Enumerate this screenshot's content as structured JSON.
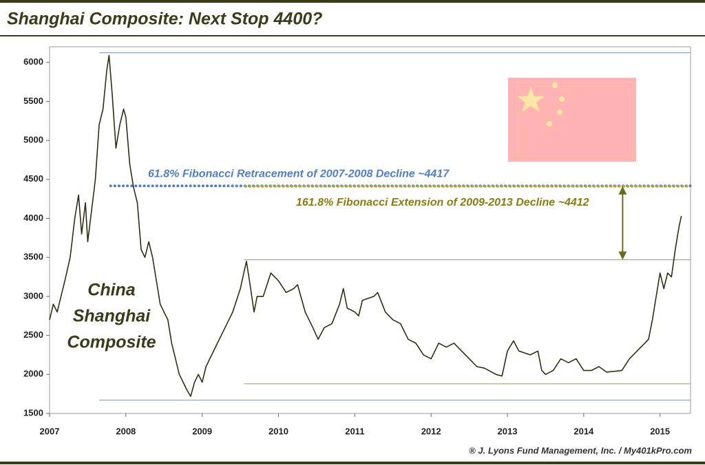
{
  "chart_data": {
    "type": "line",
    "title": "Shanghai Composite: Next Stop 4400?",
    "credit": "® J. Lyons Fund Management, Inc. / My401kPro.com",
    "xlim": [
      2007,
      2015.4
    ],
    "ylim": [
      1500,
      6200
    ],
    "xticks": [
      2007,
      2008,
      2009,
      2010,
      2011,
      2012,
      2013,
      2014,
      2015
    ],
    "yticks": [
      1500,
      2000,
      2500,
      3000,
      3500,
      4000,
      4500,
      5000,
      5500,
      6000
    ],
    "x": [
      2007.0,
      2007.05,
      2007.1,
      2007.15,
      2007.2,
      2007.27,
      2007.33,
      2007.38,
      2007.42,
      2007.47,
      2007.5,
      2007.55,
      2007.6,
      2007.65,
      2007.7,
      2007.75,
      2007.78,
      2007.82,
      2007.87,
      2007.92,
      2007.97,
      2008.0,
      2008.05,
      2008.1,
      2008.15,
      2008.2,
      2008.25,
      2008.3,
      2008.35,
      2008.4,
      2008.45,
      2008.5,
      2008.55,
      2008.6,
      2008.65,
      2008.7,
      2008.75,
      2008.8,
      2008.85,
      2008.9,
      2008.95,
      2009.0,
      2009.05,
      2009.1,
      2009.2,
      2009.3,
      2009.4,
      2009.5,
      2009.58,
      2009.62,
      2009.68,
      2009.72,
      2009.8,
      2009.9,
      2010.0,
      2010.1,
      2010.2,
      2010.25,
      2010.35,
      2010.45,
      2010.52,
      2010.6,
      2010.7,
      2010.8,
      2010.85,
      2010.9,
      2011.0,
      2011.05,
      2011.1,
      2011.25,
      2011.3,
      2011.4,
      2011.5,
      2011.6,
      2011.7,
      2011.8,
      2011.9,
      2012.0,
      2012.1,
      2012.2,
      2012.3,
      2012.4,
      2012.5,
      2012.6,
      2012.7,
      2012.85,
      2012.93,
      2013.0,
      2013.08,
      2013.15,
      2013.3,
      2013.4,
      2013.45,
      2013.5,
      2013.6,
      2013.7,
      2013.8,
      2013.9,
      2014.0,
      2014.1,
      2014.2,
      2014.3,
      2014.4,
      2014.5,
      2014.6,
      2014.7,
      2014.8,
      2014.85,
      2014.9,
      2014.95,
      2015.0,
      2015.05,
      2015.1,
      2015.15,
      2015.2,
      2015.25,
      2015.28
    ],
    "series": [
      {
        "color": "#2e2e12",
        "values": [
          2700,
          2900,
          2800,
          3000,
          3200,
          3500,
          4000,
          4300,
          3800,
          4200,
          3700,
          4100,
          4500,
          5200,
          5400,
          5900,
          6090,
          5600,
          4900,
          5200,
          5400,
          5300,
          4700,
          4400,
          4200,
          3600,
          3500,
          3700,
          3500,
          3200,
          2900,
          2800,
          2700,
          2400,
          2200,
          2000,
          1900,
          1800,
          1720,
          1900,
          2000,
          1900,
          2100,
          2200,
          2400,
          2600,
          2800,
          3100,
          3450,
          3200,
          2800,
          3000,
          3000,
          3300,
          3200,
          3050,
          3100,
          3150,
          2800,
          2600,
          2450,
          2600,
          2650,
          2900,
          3100,
          2850,
          2800,
          2750,
          2950,
          3000,
          3050,
          2800,
          2700,
          2650,
          2450,
          2400,
          2250,
          2200,
          2400,
          2350,
          2400,
          2300,
          2200,
          2100,
          2080,
          2000,
          1980,
          2300,
          2430,
          2300,
          2250,
          2300,
          2050,
          2000,
          2050,
          2200,
          2150,
          2200,
          2050,
          2050,
          2100,
          2030,
          2040,
          2050,
          2200,
          2300,
          2400,
          2450,
          2700,
          3000,
          3300,
          3100,
          3300,
          3250,
          3600,
          3900,
          4030
        ]
      }
    ],
    "reference_lines": [
      {
        "value": 6124,
        "from": 2007.65,
        "to": 2015.4,
        "color": "#8aa6d6",
        "style": "solid"
      },
      {
        "value": 1670,
        "from": 2007.65,
        "to": 2015.4,
        "color": "#8aa6d6",
        "style": "solid"
      },
      {
        "value": 3470,
        "from": 2009.55,
        "to": 2015.4,
        "color": "#b3aa6a",
        "style": "solid"
      },
      {
        "value": 1880,
        "from": 2009.55,
        "to": 2015.4,
        "color": "#b3aa6a",
        "style": "solid"
      },
      {
        "value": 4417,
        "from": 2007.8,
        "to": 2015.4,
        "color": "#4f7fc4",
        "style": "dotted",
        "label": "61.8% Fibonacci Retracement of 2007-2008 Decline ~4417"
      },
      {
        "value": 4412,
        "from": 2009.57,
        "to": 2015.4,
        "color": "#b5a62a",
        "style": "dotted",
        "label": "161.8% Fibonacci Extension of 2009-2013 Decline ~4412"
      }
    ],
    "arrow": {
      "x": 2014.51,
      "from": 4412,
      "to": 3470,
      "color": "#6b6b1e"
    },
    "series_label": [
      "China",
      "Shanghai",
      "Composite"
    ]
  }
}
